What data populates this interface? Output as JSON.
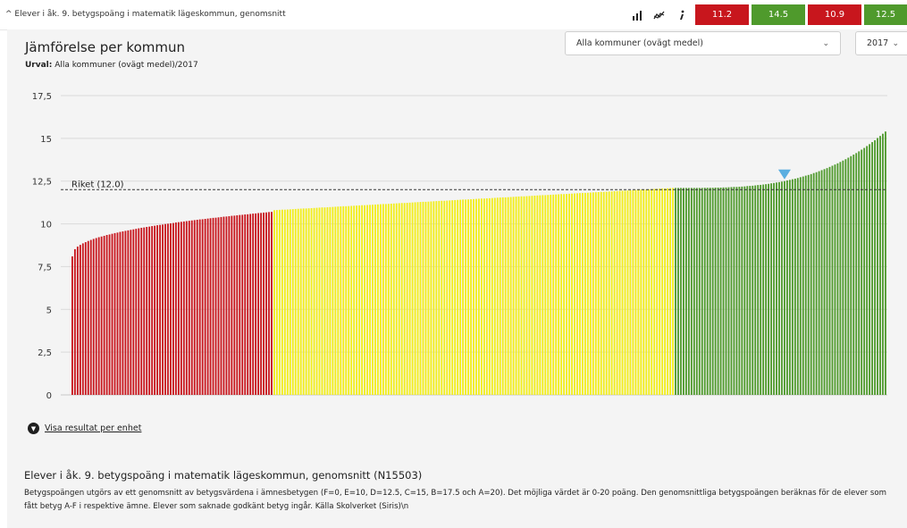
{
  "topbar": {
    "title": "^ Elever i åk. 9. betygspoäng i matematik lägeskommun, genomsnitt",
    "icons": [
      "bar-chart-icon",
      "trend-icon",
      "info-icon"
    ],
    "scores": [
      {
        "value": "11.2",
        "color": "#c8161d"
      },
      {
        "value": "14.5",
        "color": "#4f9a2c"
      },
      {
        "value": "10.9",
        "color": "#c8161d"
      },
      {
        "value": "12.5",
        "color": "#4f9a2c"
      }
    ]
  },
  "header": {
    "heading": "Jämförelse per kommun",
    "urval_label": "Urval:",
    "urval_value": "Alla kommuner (ovägt medel)/2017"
  },
  "filters": {
    "kommun": "Alla kommuner (ovägt medel)",
    "year": "2017"
  },
  "chart_data": {
    "type": "bar",
    "ylim": [
      0,
      17.5
    ],
    "yticks": [
      "0",
      "2,5",
      "5",
      "7,5",
      "10",
      "12,5",
      "15",
      "17,5"
    ],
    "grid": true,
    "reference_line": {
      "label": "Riket (12.0)",
      "value": 12.0
    },
    "marker_value": 12.5,
    "colors": {
      "low": "#c8161d",
      "mid": "#f2ee1a",
      "high": "#4f9a2c",
      "marker": "#5aaee0"
    },
    "segments": [
      {
        "color_key": "low",
        "count": 76,
        "from": 8.1,
        "to": 10.7
      },
      {
        "color_key": "mid",
        "count": 151,
        "from": 10.8,
        "to": 12.1
      },
      {
        "color_key": "high",
        "count": 80,
        "from": 12.1,
        "to": 15.4
      }
    ]
  },
  "link": {
    "label": "Visa resultat per enhet"
  },
  "description": {
    "title": "Elever i åk. 9. betygspoäng i matematik lägeskommun, genomsnitt (N15503)",
    "body": "Betygspoängen utgörs av ett genomsnitt av betygsvärdena i ämnesbetygen (F=0, E=10, D=12.5, C=15, B=17.5 och A=20). Det möjliga värdet är 0-20 poäng. Den genomsnittliga betygspoängen beräknas för de elever som fått betyg A-F i respektive ämne. Elever som saknade godkänt betyg ingår. Källa Skolverket (Siris)\\n"
  }
}
